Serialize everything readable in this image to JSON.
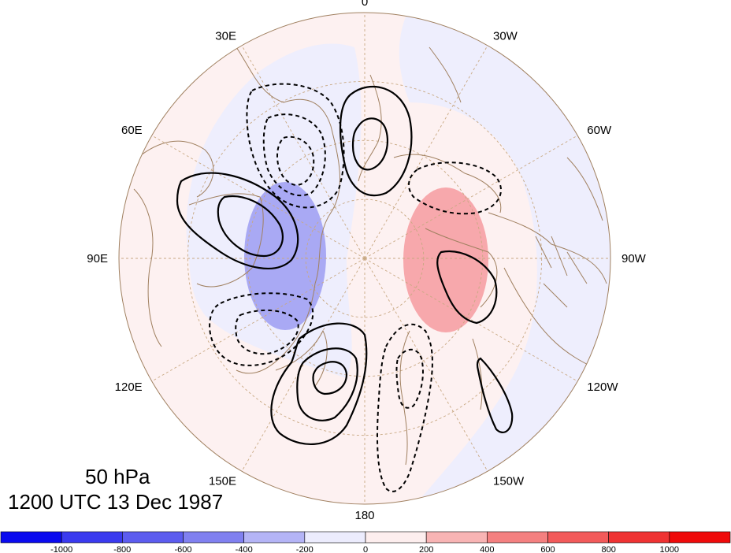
{
  "title": {
    "level": "50 hPa",
    "time": "1200 UTC 13 Dec 1987"
  },
  "map": {
    "projection": "north-polar-stereographic",
    "longitude_labels": [
      {
        "text": "0",
        "lon": 0
      },
      {
        "text": "30W",
        "lon": -30
      },
      {
        "text": "60W",
        "lon": -60
      },
      {
        "text": "90W",
        "lon": -90
      },
      {
        "text": "120W",
        "lon": -120
      },
      {
        "text": "150W",
        "lon": -150
      },
      {
        "text": "180",
        "lon": 180
      },
      {
        "text": "150E",
        "lon": 150
      },
      {
        "text": "120E",
        "lon": 120
      },
      {
        "text": "90E",
        "lon": 90
      },
      {
        "text": "60E",
        "lon": 60
      },
      {
        "text": "30E",
        "lon": 30
      }
    ],
    "shading_colors": {
      "positive_strong": "#f7a8ac",
      "positive_weak": "#fdeeee",
      "negative_strong": "#a9a9f4",
      "negative_weak": "#eeeefd"
    },
    "coastline_color": "#a08060",
    "graticule_color": "#c8a882",
    "contour_color": "#000000"
  },
  "colorbar": {
    "colors": [
      "#0a0aef",
      "#3a3aef",
      "#5c5cef",
      "#8080f0",
      "#b4b4f6",
      "#ececfd",
      "#fdeeee",
      "#f8b4b4",
      "#f48080",
      "#f25a5a",
      "#ef3232",
      "#ef0a0a"
    ],
    "ticks": [
      "-1000",
      "-800",
      "-600",
      "-400",
      "-200",
      "0",
      "200",
      "400",
      "600",
      "800",
      "1000"
    ]
  }
}
